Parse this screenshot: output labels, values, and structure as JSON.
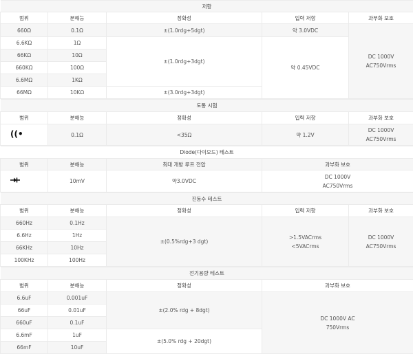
{
  "resistance": {
    "title": "저항",
    "headers": [
      "범위",
      "분해능",
      "정확성",
      "입력 저항",
      "과부화 보호"
    ],
    "rows": [
      [
        "660Ω",
        "0.1Ω"
      ],
      [
        "6.6KΩ",
        "1Ω"
      ],
      [
        "66KΩ",
        "10Ω"
      ],
      [
        "660KΩ",
        "100Ω"
      ],
      [
        "6.6MΩ",
        "1KΩ"
      ],
      [
        "66MΩ",
        "10KΩ"
      ]
    ],
    "accuracy": [
      "±(1.0rdg+5dgt)",
      "±(1.0rdg+3dgt)",
      "±(3.0rdg+3dgt)"
    ],
    "input": [
      "약 3.0VDC",
      "약 0.45VDC"
    ],
    "protection": [
      "DC 1000V",
      "AC750Vrms"
    ]
  },
  "continuity": {
    "title": "도통 시험",
    "headers": [
      "범위",
      "분해능",
      "정확성",
      "입력 저항",
      "과부화 보호"
    ],
    "icon": "sound-wave-icon",
    "resolution": "0.1Ω",
    "accuracy": "<35Ω",
    "input": "약 1.2V",
    "protection": [
      "DC 1000V",
      "AC750Vrms"
    ]
  },
  "diode": {
    "title": "Diode(다이오드) 테스트",
    "headers": [
      "범위",
      "분해능",
      "최대 개방 루프 전압",
      "과부화 보호"
    ],
    "icon": "diode-icon",
    "resolution": "10mV",
    "voltage": "약3.0VDC",
    "protection": [
      "DC 1000V",
      "AC750Vrms"
    ]
  },
  "frequency": {
    "title": "진동수 테스트",
    "headers": [
      "범위",
      "분해능",
      "정확성",
      "입력 저항",
      "과부화 보호"
    ],
    "rows": [
      [
        "660Hz",
        "0.1Hz"
      ],
      [
        "6.6Hz",
        "1Hz"
      ],
      [
        "66KHz",
        "10Hz"
      ],
      [
        "100KHz",
        "100Hz"
      ]
    ],
    "accuracy": "±(0.5%rdg+3 dgt)",
    "input": [
      ">1.5VACrms",
      "<5VACrms"
    ],
    "protection": [
      "DC 1000V",
      "AC750Vrms"
    ]
  },
  "capacitance": {
    "title": "전기용량 테스트",
    "headers": [
      "범위",
      "분해능",
      "정확성",
      "과부화 보호"
    ],
    "rows": [
      [
        "6.6uF",
        "0.001uF"
      ],
      [
        "66uF",
        "0.01uF"
      ],
      [
        "660uF",
        "0.1uF"
      ],
      [
        "6.6mF",
        "1uF"
      ],
      [
        "66mF",
        "10uF"
      ]
    ],
    "accuracy": [
      "±(2.0% rdg + 8dgt)",
      "±(5.0% rdg + 20dgt)"
    ],
    "protection": [
      "DC 1000V AC",
      "750Vrms"
    ]
  }
}
